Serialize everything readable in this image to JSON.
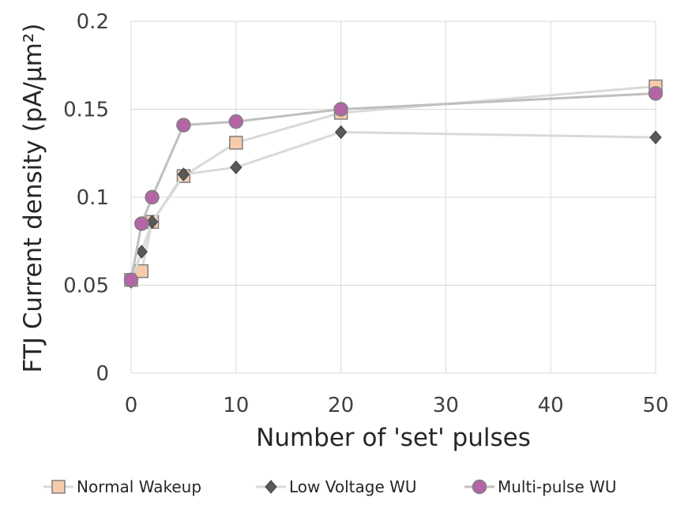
{
  "chart_data": {
    "type": "line",
    "title": "",
    "xlabel": "Number of 'set' pulses",
    "ylabel": "FTJ Current density (pA/μm²)",
    "xlim": [
      0,
      50
    ],
    "ylim": [
      0,
      0.2
    ],
    "xticks": [
      0,
      10,
      20,
      30,
      40,
      50
    ],
    "xtick_labels": [
      "0",
      "10",
      "20",
      "30",
      "40",
      "50"
    ],
    "yticks": [
      0,
      0.05,
      0.1,
      0.15,
      0.2
    ],
    "ytick_labels": [
      "0",
      "0.05",
      "0.1",
      "0.15",
      "0.2"
    ],
    "grid": true,
    "legend_position": "bottom",
    "series": [
      {
        "name": "Normal Wakeup",
        "marker": "square",
        "line_color": "#d9d9d9",
        "marker_fill": "#f8cbad",
        "marker_stroke": "#7f7f7f",
        "x": [
          0,
          1,
          2,
          5,
          10,
          20,
          50
        ],
        "y": [
          0.053,
          0.058,
          0.086,
          0.112,
          0.131,
          0.148,
          0.163
        ]
      },
      {
        "name": "Low Voltage WU",
        "marker": "diamond",
        "line_color": "#d9d9d9",
        "marker_fill": "#595959",
        "marker_stroke": "#404040",
        "x": [
          0,
          1,
          2,
          5,
          10,
          20,
          50
        ],
        "y": [
          0.052,
          0.069,
          0.086,
          0.113,
          0.117,
          0.137,
          0.134
        ]
      },
      {
        "name": "Multi-pulse WU",
        "marker": "circle",
        "line_color": "#bfbfbf",
        "marker_fill": "#b565a7",
        "marker_stroke": "#7f7f7f",
        "x": [
          0,
          1,
          2,
          5,
          10,
          20,
          50
        ],
        "y": [
          0.053,
          0.085,
          0.1,
          0.141,
          0.143,
          0.15,
          0.159
        ]
      }
    ]
  }
}
